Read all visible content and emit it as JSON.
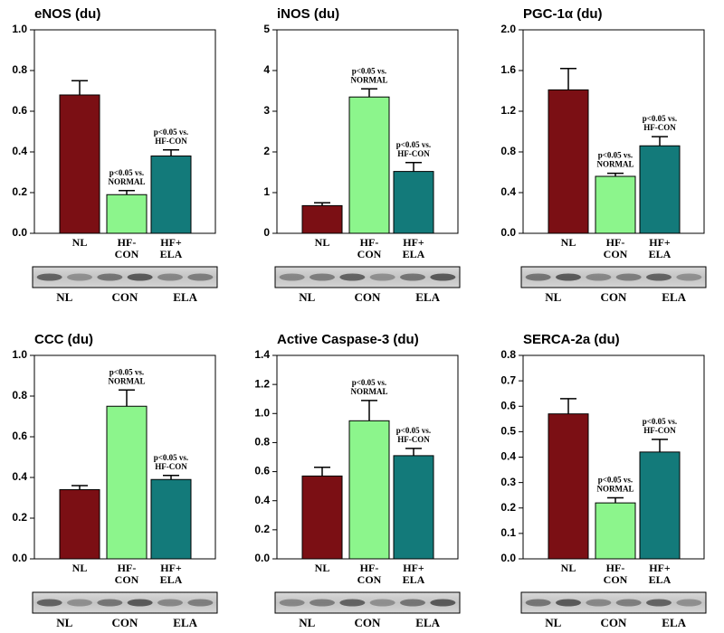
{
  "chart_data": [
    {
      "type": "bar",
      "title": "eNOS (du)",
      "categories": [
        [
          "NL"
        ],
        [
          "HF-",
          "CON"
        ],
        [
          "HF+",
          "ELA"
        ]
      ],
      "values": [
        0.68,
        0.19,
        0.38
      ],
      "errors": [
        0.07,
        0.02,
        0.03
      ],
      "colors": [
        "#7b0f14",
        "#8cf58c",
        "#137a7a"
      ],
      "bar_labels": [
        null,
        [
          "p<0.05 vs.",
          "NORMAL"
        ],
        [
          "p<0.05 vs.",
          "HF-CON"
        ]
      ],
      "ylim": [
        0,
        1
      ],
      "yticks": [
        {
          "value": 0,
          "label": "0.0"
        },
        0.2,
        0.4,
        0.6,
        0.8,
        {
          "value": 1,
          "label": "1.0"
        }
      ],
      "blot_labels": [
        "NL",
        "CON",
        "ELA"
      ]
    },
    {
      "type": "bar",
      "title": "iNOS (du)",
      "categories": [
        [
          "NL"
        ],
        [
          "HF-",
          "CON"
        ],
        [
          "HF+",
          "ELA"
        ]
      ],
      "values": [
        0.68,
        3.35,
        1.52
      ],
      "errors": [
        0.07,
        0.2,
        0.22
      ],
      "colors": [
        "#7b0f14",
        "#8cf58c",
        "#137a7a"
      ],
      "bar_labels": [
        null,
        [
          "p<0.05 vs.",
          "NORMAL"
        ],
        [
          "p<0.05 vs.",
          "HF-CON"
        ]
      ],
      "ylim": [
        0,
        5
      ],
      "yticks": [
        0,
        1,
        2,
        3,
        4,
        5
      ],
      "blot_labels": [
        "NL",
        "CON",
        "ELA"
      ]
    },
    {
      "type": "bar",
      "title": "PGC-1α (du)",
      "categories": [
        [
          "NL"
        ],
        [
          "HF-",
          "CON"
        ],
        [
          "HF+",
          "ELA"
        ]
      ],
      "values": [
        1.41,
        0.56,
        0.86
      ],
      "errors": [
        0.21,
        0.03,
        0.09
      ],
      "colors": [
        "#7b0f14",
        "#8cf58c",
        "#137a7a"
      ],
      "bar_labels": [
        null,
        [
          "p<0.05 vs.",
          "NORMAL"
        ],
        [
          "p<0.05 vs.",
          "HF-CON"
        ]
      ],
      "ylim": [
        0,
        2
      ],
      "yticks": [
        {
          "value": 0,
          "label": "0.0"
        },
        0.4,
        0.8,
        1.2,
        1.6,
        {
          "value": 2,
          "label": "2.0"
        }
      ],
      "blot_labels": [
        "NL",
        "CON",
        "ELA"
      ]
    },
    {
      "type": "bar",
      "title": "CCC (du)",
      "categories": [
        [
          "NL"
        ],
        [
          "HF-",
          "CON"
        ],
        [
          "HF+",
          "ELA"
        ]
      ],
      "values": [
        0.34,
        0.75,
        0.39
      ],
      "errors": [
        0.02,
        0.08,
        0.02
      ],
      "colors": [
        "#7b0f14",
        "#8cf58c",
        "#137a7a"
      ],
      "bar_labels": [
        null,
        [
          "p<0.05 vs.",
          "NORMAL"
        ],
        [
          "p<0.05 vs.",
          "HF-CON"
        ]
      ],
      "ylim": [
        0,
        1
      ],
      "yticks": [
        {
          "value": 0,
          "label": "0.0"
        },
        0.2,
        0.4,
        0.6,
        0.8,
        {
          "value": 1,
          "label": "1.0"
        }
      ],
      "blot_labels": [
        "NL",
        "CON",
        "ELA"
      ]
    },
    {
      "type": "bar",
      "title": "Active Caspase-3 (du)",
      "categories": [
        [
          "NL"
        ],
        [
          "HF-",
          "CON"
        ],
        [
          "HF+",
          "ELA"
        ]
      ],
      "values": [
        0.57,
        0.95,
        0.71
      ],
      "errors": [
        0.06,
        0.14,
        0.05
      ],
      "colors": [
        "#7b0f14",
        "#8cf58c",
        "#137a7a"
      ],
      "bar_labels": [
        null,
        [
          "p<0.05 vs.",
          "NORMAL"
        ],
        [
          "p<0.05 vs.",
          "HF-CON"
        ]
      ],
      "ylim": [
        0,
        1.4
      ],
      "yticks": [
        {
          "value": 0,
          "label": "0.0"
        },
        0.2,
        0.4,
        0.6,
        0.8,
        {
          "value": 1,
          "label": "1.0"
        },
        1.2,
        1.4
      ],
      "blot_labels": [
        "NL",
        "CON",
        "ELA"
      ]
    },
    {
      "type": "bar",
      "title": "SERCA-2a (du)",
      "categories": [
        [
          "NL"
        ],
        [
          "HF-",
          "CON"
        ],
        [
          "HF+",
          "ELA"
        ]
      ],
      "values": [
        0.57,
        0.22,
        0.42
      ],
      "errors": [
        0.06,
        0.02,
        0.05
      ],
      "colors": [
        "#7b0f14",
        "#8cf58c",
        "#137a7a"
      ],
      "bar_labels": [
        null,
        [
          "p<0.05 vs.",
          "NORMAL"
        ],
        [
          "p<0.05 vs.",
          "HF-CON"
        ]
      ],
      "ylim": [
        0,
        0.8
      ],
      "yticks": [
        {
          "value": 0,
          "label": "0.0"
        },
        0.1,
        0.2,
        0.3,
        0.4,
        0.5,
        0.6,
        0.7,
        0.8
      ],
      "blot_labels": [
        "NL",
        "CON",
        "ELA"
      ]
    }
  ]
}
